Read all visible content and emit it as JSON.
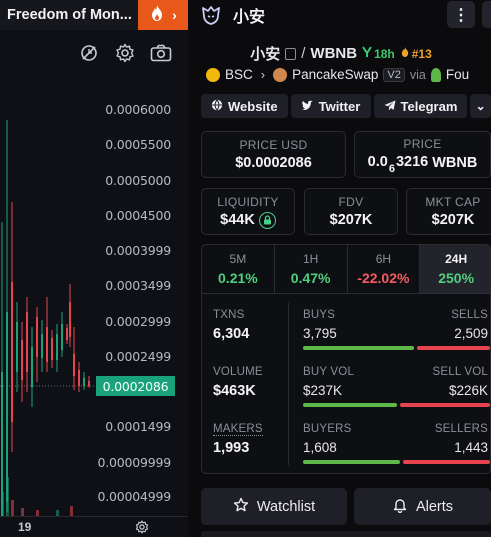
{
  "chart_tab": {
    "title": "Freedom of Mon...",
    "fire_icon": "fire-icon",
    "expand_icon": "chevron-right-icon"
  },
  "chart_toolbar": {
    "icons": [
      "measure-icon",
      "settings-gear-icon",
      "camera-icon"
    ]
  },
  "price_axis": {
    "ticks": [
      "0.0006000",
      "0.0005500",
      "0.0005000",
      "0.0004500",
      "0.0003999",
      "0.0003499",
      "0.0002999",
      "0.0002499",
      "0.0001499",
      "0.00009999",
      "0.00004999"
    ],
    "current_price": "0.0002086"
  },
  "x_axis": {
    "label": "19"
  },
  "header": {
    "title": "小安"
  },
  "pair": {
    "base": "小安",
    "separator": "/",
    "quote": "WBNB",
    "boost": "18h",
    "rank": "#13"
  },
  "chain": {
    "network": "BSC",
    "dex": "PancakeSwap",
    "version": "V2",
    "via": "via",
    "launchpad": "Fou"
  },
  "links": {
    "website": "Website",
    "twitter": "Twitter",
    "telegram": "Telegram"
  },
  "price_usd": {
    "label": "PRICE USD",
    "value": "$0.0002086"
  },
  "price_native": {
    "label": "PRICE",
    "prefix": "0.0",
    "zeros": "6",
    "digits": "3216",
    "unit": "WBNB"
  },
  "liquidity": {
    "label": "LIQUIDITY",
    "value": "$44K"
  },
  "fdv": {
    "label": "FDV",
    "value": "$207K"
  },
  "mkt_cap": {
    "label": "MKT CAP",
    "value": "$207K"
  },
  "timeframes": [
    {
      "label": "5M",
      "value": "0.21%"
    },
    {
      "label": "1H",
      "value": "0.47%"
    },
    {
      "label": "6H",
      "value": "-22.02%"
    },
    {
      "label": "24H",
      "value": "250%"
    }
  ],
  "stats": {
    "txns": {
      "label": "TXNS",
      "value": "6,304",
      "left_label": "BUYS",
      "left_value": "3,795",
      "right_label": "SELLS",
      "right_value": "2,509",
      "buy_share": 0.602
    },
    "volume": {
      "label": "VOLUME",
      "value": "$463K",
      "left_label": "BUY VOL",
      "left_value": "$237K",
      "right_label": "SELL VOL",
      "right_value": "$226K",
      "buy_share": 0.512
    },
    "makers": {
      "label": "MAKERS",
      "value": "1,993",
      "left_label": "BUYERS",
      "left_value": "1,608",
      "right_label": "SELLERS",
      "right_value": "1,443",
      "buy_share": 0.527
    }
  },
  "actions": {
    "watchlist": "Watchlist",
    "alerts": "Alerts"
  },
  "colors": {
    "positive": "#4fd07e",
    "negative": "#f25b63",
    "accent_orange": "#e8581a",
    "price_tag": "#1aa37a"
  }
}
